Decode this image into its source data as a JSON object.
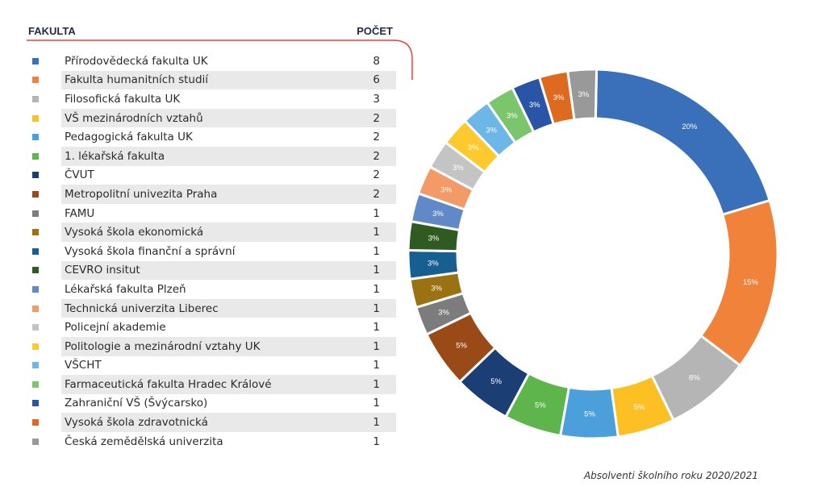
{
  "header": {
    "col_faculty": "FAKULTA",
    "col_count": "POČET"
  },
  "footnote": "Absolventi školního roku 2020/2021",
  "chart_data": {
    "type": "pie",
    "donut": true,
    "categories": [
      "Přírodovědecká fakulta UK",
      "Fakulta humanitních studií",
      "Filosofická fakulta UK",
      "VŠ mezinárodních vztahů",
      "Pedagogická fakulta UK",
      "1. lékařská fakulta",
      "ČVUT",
      "Metropolitní univezita Praha",
      "FAMU",
      "Vysoká škola ekonomická",
      "Vysoká škola finanční a správní",
      "CEVRO insitut",
      "Lékařská fakulta Plzeň",
      "Technická univerzita Liberec",
      "Policejní akademie",
      "Politologie a mezinárodní vztahy UK",
      "VŠCHT",
      "Farmaceutická fakulta Hradec Králové",
      "Zahraniční VŠ (Švýcarsko)",
      "Vysoká škola zdravotnická",
      "Česká zemědělská univerzita"
    ],
    "values": [
      8,
      6,
      3,
      2,
      2,
      2,
      2,
      2,
      1,
      1,
      1,
      1,
      1,
      1,
      1,
      1,
      1,
      1,
      1,
      1,
      1
    ],
    "labels": [
      "20%",
      "15%",
      "8%",
      "5%",
      "5%",
      "5%",
      "5%",
      "5%",
      "3%",
      "3%",
      "3%",
      "3%",
      "3%",
      "3%",
      "3%",
      "3%",
      "3%",
      "3%",
      "3%",
      "3%",
      "3%"
    ],
    "colors": [
      "#3a6fba",
      "#f0823a",
      "#b5b5b5",
      "#fcbf24",
      "#4b9fdb",
      "#5db54b",
      "#1b3f75",
      "#9a4a16",
      "#7c7c7c",
      "#9a7212",
      "#175f91",
      "#2f5b22",
      "#6189c8",
      "#f39a66",
      "#c4c4c4",
      "#fcca2e",
      "#6cb6e8",
      "#7bc56d",
      "#2a55a6",
      "#de6a1f",
      "#999999"
    ],
    "legend": "left-table"
  }
}
